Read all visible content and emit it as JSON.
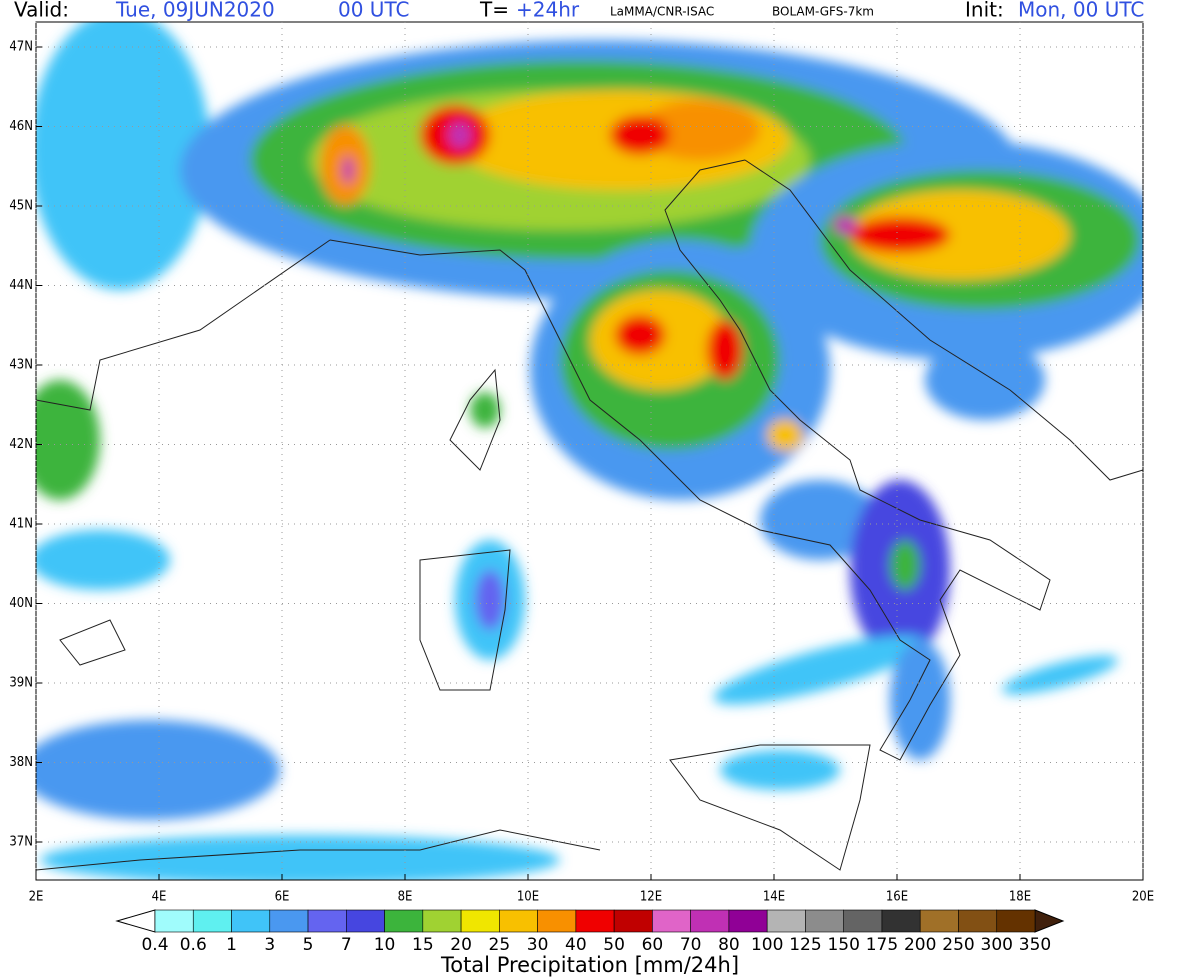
{
  "header": {
    "valid_label": "Valid:",
    "valid_date": "Tue, 09JUN2020",
    "valid_time": "00 UTC",
    "lead_label": "T=",
    "lead_value": "+24hr",
    "source": "LaMMA/CNR-ISAC",
    "model": "BOLAM-GFS-7km",
    "init_label": "Init:",
    "init_value": "Mon, 00 UTC"
  },
  "map": {
    "lat_labels": [
      "47N",
      "46N",
      "45N",
      "44N",
      "43N",
      "42N",
      "41N",
      "40N",
      "39N",
      "38N",
      "37N"
    ],
    "lon_labels": [
      "2E",
      "4E",
      "6E",
      "8E",
      "10E",
      "12E",
      "14E",
      "16E",
      "18E",
      "20E"
    ]
  },
  "colorbar": {
    "title": "Total Precipitation [mm/24h]",
    "labels": [
      "0.4",
      "0.6",
      "1",
      "3",
      "5",
      "7",
      "10",
      "15",
      "20",
      "25",
      "30",
      "40",
      "50",
      "60",
      "70",
      "80",
      "100",
      "125",
      "150",
      "175",
      "200",
      "250",
      "300",
      "350"
    ],
    "colors": [
      "#a0fcfc",
      "#5ff0f0",
      "#40c4f8",
      "#4a98f0",
      "#6464f0",
      "#4646e0",
      "#3cb43c",
      "#a0d232",
      "#f0e600",
      "#f8c000",
      "#f89000",
      "#f00000",
      "#c00000",
      "#e064c8",
      "#c030b4",
      "#900096",
      "#b4b4b4",
      "#8c8c8c",
      "#646464",
      "#323232",
      "#a07028",
      "#825014",
      "#643200"
    ],
    "under_color": "#ffffff",
    "over_color": "#40200c"
  }
}
